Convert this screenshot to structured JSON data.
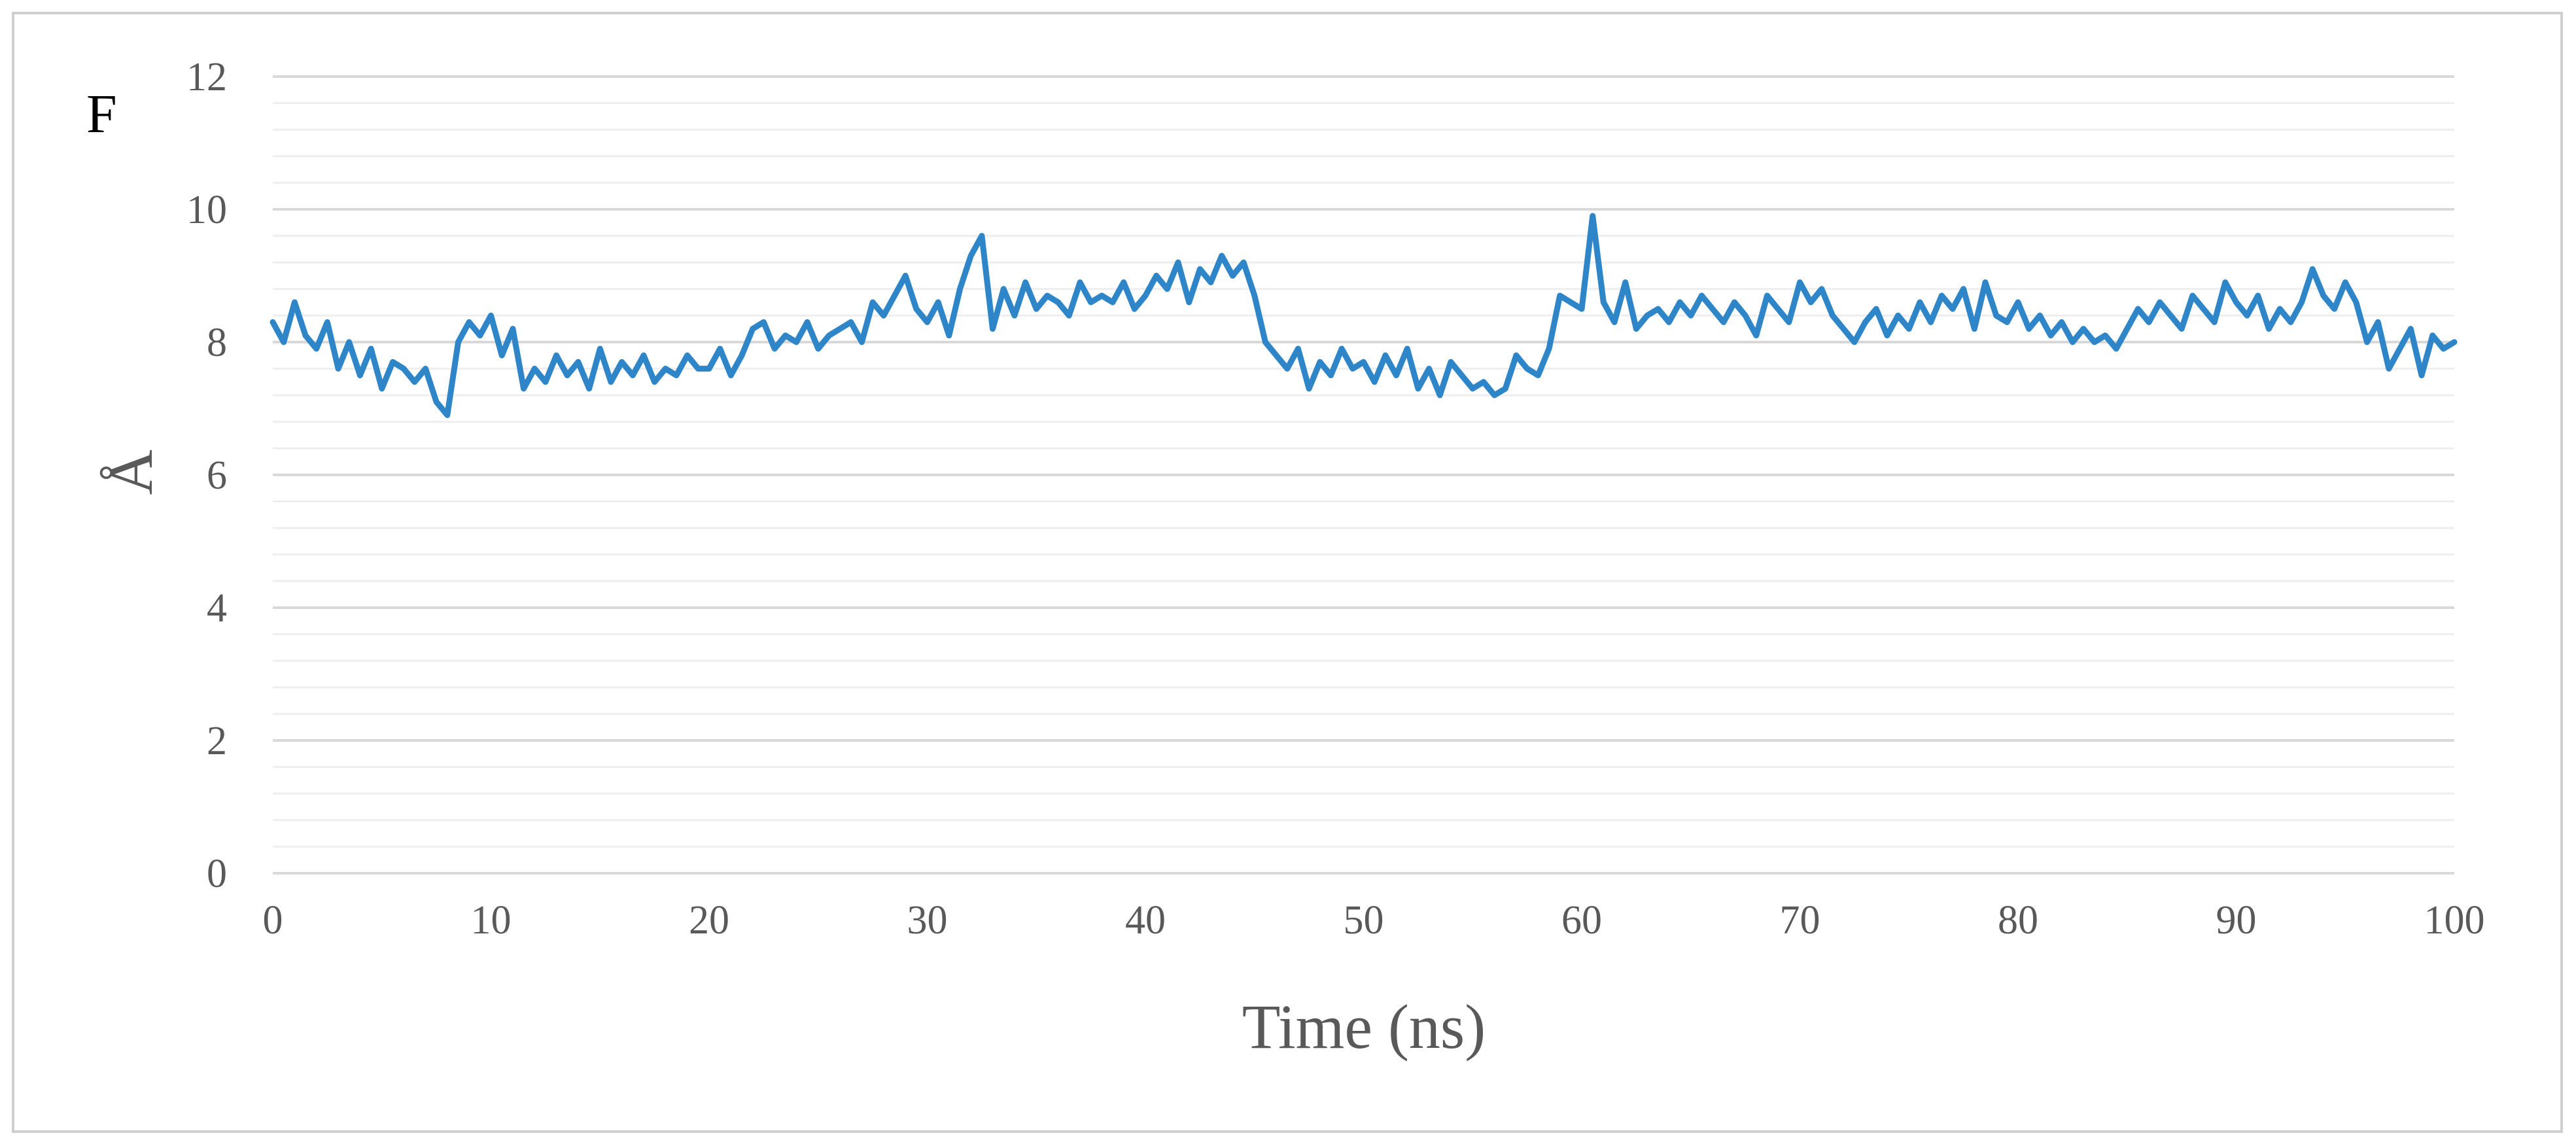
{
  "panel_label": "F",
  "colors": {
    "series": "#2e86c8",
    "major_grid": "#d9d9d9",
    "minor_grid": "#eeeeee",
    "text": "#595959"
  },
  "chart_data": {
    "type": "line",
    "xlabel": "Time (ns)",
    "ylabel": "Å",
    "xlim": [
      0,
      100
    ],
    "ylim": [
      0,
      12
    ],
    "x_ticks": [
      "0",
      "10",
      "20",
      "30",
      "40",
      "50",
      "60",
      "70",
      "80",
      "90",
      "100"
    ],
    "y_ticks": [
      "0",
      "2",
      "4",
      "6",
      "8",
      "10",
      "12"
    ],
    "grid": true,
    "legend": "none",
    "series": [
      {
        "x": [
          0,
          0.5,
          1,
          1.5,
          2,
          2.5,
          3,
          3.5,
          4,
          4.5,
          5,
          5.5,
          6,
          6.5,
          7,
          7.5,
          8,
          8.5,
          9,
          9.5,
          10,
          10.5,
          11,
          11.5,
          12,
          12.5,
          13,
          13.5,
          14,
          14.5,
          15,
          15.5,
          16,
          16.5,
          17,
          17.5,
          18,
          18.5,
          19,
          19.5,
          20,
          20.5,
          21,
          21.5,
          22,
          22.5,
          23,
          23.5,
          24,
          24.5,
          25,
          25.5,
          26,
          26.5,
          27,
          27.5,
          28,
          28.5,
          29,
          29.5,
          30,
          30.5,
          31,
          31.5,
          32,
          32.5,
          33,
          33.5,
          34,
          34.5,
          35,
          35.5,
          36,
          36.5,
          37,
          37.5,
          38,
          38.5,
          39,
          39.5,
          40,
          40.5,
          41,
          41.5,
          42,
          42.5,
          43,
          43.5,
          44,
          44.5,
          45,
          45.5,
          46,
          46.5,
          47,
          47.5,
          48,
          48.5,
          49,
          49.5,
          50,
          50.5,
          51,
          51.5,
          52,
          52.5,
          53,
          53.5,
          54,
          54.5,
          55,
          55.5,
          56,
          56.5,
          57,
          57.5,
          58,
          58.5,
          59,
          59.5,
          60,
          60.5,
          61,
          61.5,
          62,
          62.5,
          63,
          63.5,
          64,
          64.5,
          65,
          65.5,
          66,
          66.5,
          67,
          67.5,
          68,
          68.5,
          69,
          69.5,
          70,
          70.5,
          71,
          71.5,
          72,
          72.5,
          73,
          73.5,
          74,
          74.5,
          75,
          75.5,
          76,
          76.5,
          77,
          77.5,
          78,
          78.5,
          79,
          79.5,
          80,
          80.5,
          81,
          81.5,
          82,
          82.5,
          83,
          83.5,
          84,
          84.5,
          85,
          85.5,
          86,
          86.5,
          87,
          87.5,
          88,
          88.5,
          89,
          89.5,
          90,
          90.5,
          91,
          91.5,
          92,
          92.5,
          93,
          93.5,
          94,
          94.5,
          95,
          95.5,
          96,
          96.5,
          97,
          97.5,
          98,
          98.5,
          99,
          99.5,
          100
        ],
        "values": [
          8.3,
          8.0,
          8.6,
          8.1,
          7.9,
          8.3,
          7.6,
          8.0,
          7.5,
          7.9,
          7.3,
          7.7,
          7.6,
          7.4,
          7.6,
          7.1,
          6.9,
          8.0,
          8.3,
          8.1,
          8.4,
          7.8,
          8.2,
          7.3,
          7.6,
          7.4,
          7.8,
          7.5,
          7.7,
          7.3,
          7.9,
          7.4,
          7.7,
          7.5,
          7.8,
          7.4,
          7.6,
          7.5,
          7.8,
          7.6,
          7.6,
          7.9,
          7.5,
          7.8,
          8.2,
          8.3,
          7.9,
          8.1,
          8.0,
          8.3,
          7.9,
          8.1,
          8.2,
          8.3,
          8.0,
          8.6,
          8.4,
          8.7,
          9.0,
          8.5,
          8.3,
          8.6,
          8.1,
          8.8,
          9.3,
          9.6,
          8.2,
          8.8,
          8.4,
          8.9,
          8.5,
          8.7,
          8.6,
          8.4,
          8.9,
          8.6,
          8.7,
          8.6,
          8.9,
          8.5,
          8.7,
          9.0,
          8.8,
          9.2,
          8.6,
          9.1,
          8.9,
          9.3,
          9.0,
          9.2,
          8.7,
          8.0,
          7.8,
          7.6,
          7.9,
          7.3,
          7.7,
          7.5,
          7.9,
          7.6,
          7.7,
          7.4,
          7.8,
          7.5,
          7.9,
          7.3,
          7.6,
          7.2,
          7.7,
          7.5,
          7.3,
          7.4,
          7.2,
          7.3,
          7.8,
          7.6,
          7.5,
          7.9,
          8.7,
          8.6,
          8.5,
          9.9,
          8.6,
          8.3,
          8.9,
          8.2,
          8.4,
          8.5,
          8.3,
          8.6,
          8.4,
          8.7,
          8.5,
          8.3,
          8.6,
          8.4,
          8.1,
          8.7,
          8.5,
          8.3,
          8.9,
          8.6,
          8.8,
          8.4,
          8.2,
          8.0,
          8.3,
          8.5,
          8.1,
          8.4,
          8.2,
          8.6,
          8.3,
          8.7,
          8.5,
          8.8,
          8.2,
          8.9,
          8.4,
          8.3,
          8.6,
          8.2,
          8.4,
          8.1,
          8.3,
          8.0,
          8.2,
          8.0,
          8.1,
          7.9,
          8.2,
          8.5,
          8.3,
          8.6,
          8.4,
          8.2,
          8.7,
          8.5,
          8.3,
          8.9,
          8.6,
          8.4,
          8.7,
          8.2,
          8.5,
          8.3,
          8.6,
          9.1,
          8.7,
          8.5,
          8.9,
          8.6,
          8.0,
          8.3,
          7.6,
          7.9,
          8.2,
          7.5,
          8.1,
          7.9,
          8.0
        ]
      }
    ]
  }
}
